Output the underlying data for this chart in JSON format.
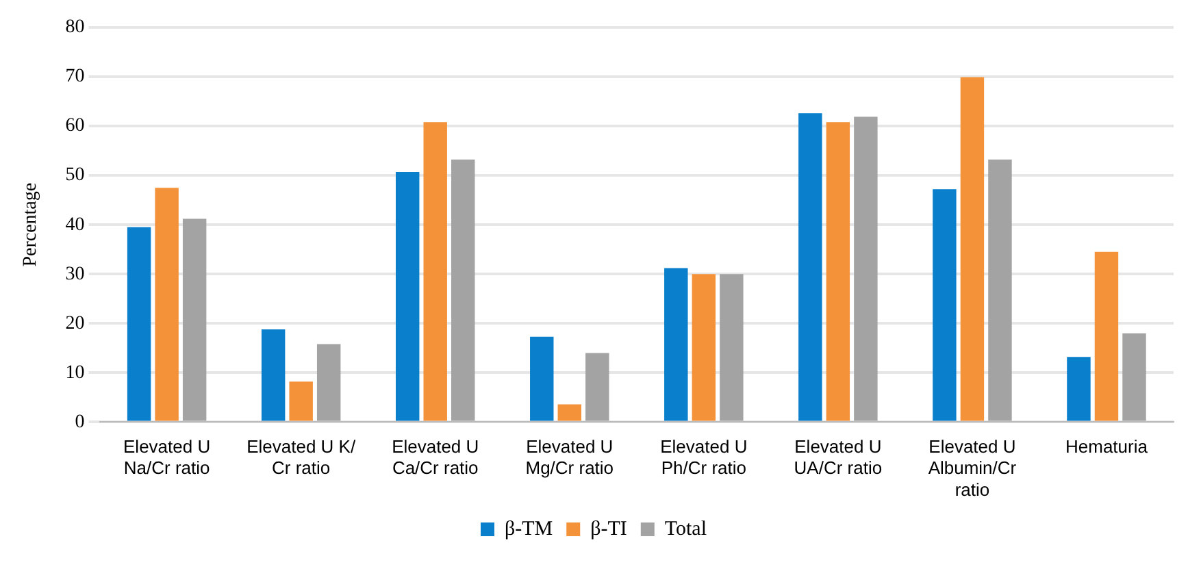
{
  "chart_data": {
    "type": "bar",
    "ylabel": "Percentage",
    "categories": [
      "Elevated U Na/Cr ratio",
      "Elevated U K/ Cr ratio",
      "Elevated U Ca/Cr ratio",
      "Elevated U Mg/Cr ratio",
      "Elevated U Ph/Cr ratio",
      "Elevated U UA/Cr ratio",
      "Elevated U Albumin/Cr ratio",
      "Hematuria"
    ],
    "series": [
      {
        "name": "β-TM",
        "color": "#0a7fcc",
        "values": [
          39.5,
          18.8,
          50.7,
          17.3,
          31.2,
          62.6,
          47.2,
          13.2
        ]
      },
      {
        "name": "β-TI",
        "color": "#f4923a",
        "values": [
          47.5,
          8.2,
          60.8,
          3.6,
          30,
          60.8,
          69.9,
          34.5
        ]
      },
      {
        "name": "Total",
        "color": "#a3a3a3",
        "values": [
          41.2,
          15.8,
          53.2,
          14,
          30,
          61.9,
          53.2,
          18
        ]
      }
    ],
    "ylim": [
      0,
      80
    ],
    "yticks": [
      0,
      10,
      20,
      30,
      40,
      50,
      60,
      70,
      80
    ],
    "grid": "y",
    "legend": "bottom"
  }
}
